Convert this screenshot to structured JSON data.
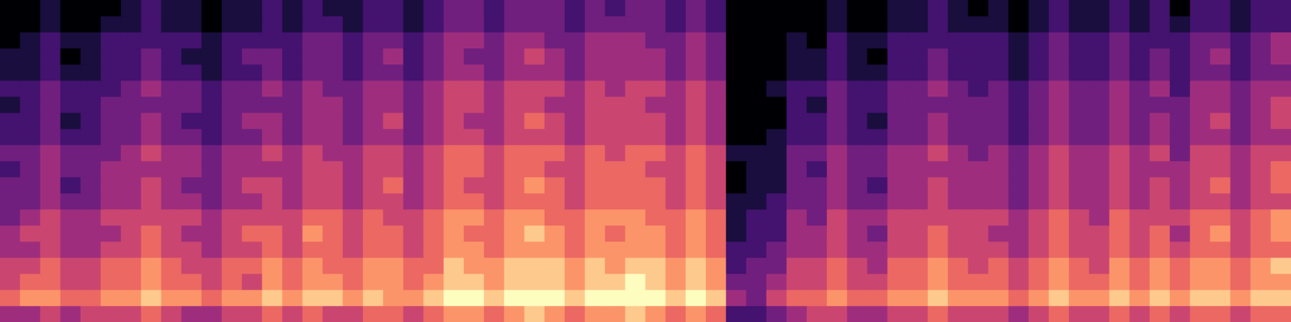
{
  "chart_data": {
    "type": "heatmap",
    "color": "magma",
    "tick_labels": false,
    "zlim": [
      0,
      9
    ],
    "cells": [
      [
        4,
        4,
        5,
        4,
        5,
        5,
        5,
        6,
        5,
        4,
        4,
        5,
        5,
        6,
        5,
        6,
        5,
        5,
        6,
        6,
        5,
        6,
        7,
        7,
        6,
        7,
        8,
        7,
        6,
        7,
        7,
        8,
        7,
        6,
        7,
        6,
        2,
        2,
        3,
        4,
        5,
        5,
        4,
        4,
        5,
        5,
        6,
        5,
        5,
        5,
        4,
        5,
        6,
        5,
        5,
        6,
        5,
        6,
        5,
        6,
        6,
        5,
        6,
        6
      ],
      [
        6,
        7,
        7,
        6,
        6,
        7,
        7,
        8,
        7,
        7,
        6,
        7,
        7,
        8,
        7,
        8,
        8,
        7,
        8,
        7,
        7,
        8,
        9,
        9,
        8,
        9,
        9,
        9,
        8,
        9,
        9,
        9,
        9,
        8,
        9,
        8,
        4,
        3,
        5,
        6,
        6,
        7,
        6,
        6,
        7,
        7,
        8,
        7,
        7,
        7,
        6,
        7,
        8,
        7,
        7,
        8,
        7,
        8,
        7,
        8,
        8,
        7,
        8,
        8
      ],
      [
        5,
        6,
        6,
        5,
        5,
        6,
        6,
        7,
        6,
        6,
        5,
        6,
        5,
        7,
        6,
        7,
        7,
        6,
        7,
        7,
        6,
        7,
        8,
        8,
        7,
        8,
        8,
        8,
        7,
        8,
        8,
        9,
        8,
        7,
        8,
        7,
        3,
        3,
        4,
        5,
        5,
        6,
        5,
        5,
        6,
        6,
        7,
        6,
        6,
        6,
        5,
        6,
        7,
        6,
        6,
        7,
        6,
        7,
        6,
        7,
        7,
        6,
        7,
        7
      ],
      [
        5,
        5,
        6,
        5,
        5,
        6,
        6,
        7,
        6,
        5,
        5,
        6,
        6,
        7,
        6,
        7,
        6,
        6,
        7,
        7,
        6,
        6,
        8,
        7,
        7,
        8,
        8,
        8,
        7,
        8,
        7,
        8,
        8,
        7,
        8,
        7,
        2,
        3,
        3,
        5,
        5,
        6,
        5,
        4,
        6,
        6,
        7,
        6,
        5,
        6,
        5,
        6,
        7,
        6,
        5,
        7,
        6,
        7,
        6,
        7,
        7,
        6,
        7,
        8
      ],
      [
        4,
        4,
        5,
        4,
        4,
        5,
        5,
        6,
        5,
        5,
        4,
        5,
        5,
        6,
        5,
        6,
        6,
        5,
        6,
        6,
        5,
        6,
        7,
        7,
        6,
        7,
        7,
        7,
        6,
        7,
        7,
        7,
        7,
        6,
        7,
        6,
        2,
        2,
        3,
        4,
        4,
        5,
        4,
        4,
        5,
        5,
        6,
        5,
        5,
        5,
        4,
        5,
        6,
        5,
        5,
        6,
        5,
        6,
        5,
        6,
        6,
        5,
        6,
        6
      ],
      [
        4,
        5,
        5,
        4,
        4,
        4,
        5,
        6,
        5,
        4,
        4,
        5,
        6,
        6,
        5,
        7,
        6,
        5,
        6,
        6,
        5,
        6,
        7,
        6,
        6,
        7,
        8,
        7,
        6,
        7,
        6,
        7,
        7,
        6,
        7,
        6,
        1,
        2,
        2,
        4,
        4,
        5,
        4,
        3,
        5,
        5,
        6,
        5,
        5,
        4,
        4,
        5,
        6,
        5,
        5,
        6,
        5,
        6,
        4,
        6,
        7,
        5,
        6,
        7
      ],
      [
        3,
        4,
        5,
        4,
        4,
        5,
        5,
        5,
        5,
        5,
        4,
        5,
        5,
        5,
        5,
        6,
        6,
        5,
        6,
        5,
        5,
        6,
        7,
        7,
        6,
        7,
        7,
        6,
        6,
        7,
        7,
        7,
        6,
        6,
        7,
        6,
        1,
        2,
        2,
        4,
        3,
        5,
        4,
        4,
        5,
        5,
        5,
        5,
        5,
        5,
        4,
        5,
        6,
        5,
        4,
        6,
        5,
        5,
        5,
        6,
        6,
        5,
        6,
        7
      ],
      [
        3,
        3,
        4,
        3,
        3,
        4,
        4,
        5,
        4,
        4,
        3,
        4,
        4,
        5,
        4,
        5,
        5,
        4,
        5,
        5,
        4,
        5,
        6,
        6,
        5,
        6,
        6,
        6,
        5,
        6,
        6,
        6,
        6,
        5,
        6,
        5,
        1,
        1,
        2,
        3,
        3,
        4,
        3,
        3,
        4,
        4,
        5,
        4,
        4,
        4,
        3,
        4,
        5,
        4,
        4,
        5,
        4,
        5,
        4,
        5,
        5,
        4,
        5,
        5
      ],
      [
        3,
        3,
        4,
        2,
        3,
        4,
        4,
        5,
        4,
        3,
        3,
        4,
        5,
        5,
        4,
        5,
        5,
        4,
        5,
        6,
        4,
        5,
        6,
        5,
        5,
        6,
        7,
        6,
        5,
        6,
        6,
        6,
        6,
        5,
        6,
        5,
        0,
        1,
        1,
        3,
        3,
        4,
        3,
        2,
        4,
        4,
        5,
        4,
        4,
        4,
        3,
        4,
        5,
        4,
        4,
        5,
        4,
        5,
        4,
        5,
        6,
        4,
        5,
        6
      ],
      [
        2,
        3,
        4,
        3,
        3,
        4,
        4,
        4,
        4,
        4,
        3,
        4,
        4,
        4,
        4,
        5,
        5,
        4,
        5,
        5,
        4,
        5,
        6,
        6,
        5,
        6,
        6,
        5,
        5,
        6,
        6,
        6,
        5,
        5,
        6,
        5,
        0,
        1,
        1,
        3,
        2,
        4,
        3,
        3,
        4,
        4,
        4,
        4,
        4,
        4,
        3,
        4,
        5,
        4,
        4,
        5,
        4,
        4,
        4,
        5,
        5,
        4,
        5,
        6
      ],
      [
        3,
        3,
        4,
        3,
        3,
        3,
        4,
        5,
        4,
        4,
        3,
        4,
        4,
        5,
        4,
        5,
        4,
        4,
        5,
        5,
        4,
        5,
        6,
        6,
        5,
        6,
        6,
        6,
        5,
        6,
        5,
        6,
        6,
        5,
        6,
        5,
        1,
        1,
        1,
        3,
        3,
        4,
        3,
        3,
        4,
        4,
        5,
        4,
        3,
        4,
        3,
        4,
        5,
        4,
        4,
        5,
        4,
        5,
        3,
        5,
        5,
        4,
        5,
        5
      ],
      [
        2,
        2,
        3,
        2,
        2,
        3,
        3,
        4,
        3,
        3,
        2,
        3,
        3,
        4,
        3,
        4,
        4,
        3,
        4,
        4,
        3,
        4,
        5,
        5,
        4,
        5,
        5,
        5,
        4,
        5,
        5,
        5,
        5,
        4,
        5,
        4,
        0,
        0,
        1,
        2,
        2,
        3,
        2,
        2,
        3,
        3,
        4,
        3,
        3,
        3,
        2,
        3,
        4,
        3,
        3,
        4,
        3,
        4,
        3,
        4,
        4,
        3,
        4,
        4
      ],
      [
        2,
        2,
        3,
        1,
        2,
        3,
        3,
        4,
        3,
        2,
        2,
        3,
        4,
        4,
        3,
        4,
        4,
        3,
        4,
        5,
        3,
        4,
        5,
        4,
        4,
        5,
        6,
        5,
        4,
        5,
        5,
        5,
        5,
        4,
        5,
        4,
        0,
        0,
        0,
        2,
        2,
        3,
        2,
        1,
        3,
        3,
        4,
        3,
        3,
        3,
        2,
        3,
        4,
        3,
        3,
        4,
        3,
        4,
        3,
        4,
        5,
        3,
        4,
        5
      ],
      [
        1,
        2,
        3,
        2,
        2,
        3,
        3,
        3,
        3,
        3,
        2,
        3,
        3,
        3,
        3,
        4,
        4,
        3,
        4,
        4,
        3,
        4,
        5,
        5,
        4,
        5,
        5,
        4,
        4,
        5,
        5,
        5,
        4,
        4,
        5,
        4,
        0,
        0,
        0,
        2,
        1,
        3,
        2,
        2,
        3,
        3,
        3,
        3,
        3,
        3,
        2,
        3,
        4,
        3,
        3,
        4,
        3,
        3,
        3,
        4,
        4,
        3,
        4,
        5
      ],
      [
        2,
        2,
        3,
        2,
        2,
        2,
        3,
        4,
        3,
        3,
        2,
        3,
        3,
        4,
        3,
        4,
        3,
        3,
        4,
        4,
        3,
        4,
        5,
        5,
        4,
        5,
        5,
        5,
        4,
        5,
        4,
        5,
        5,
        4,
        5,
        4,
        0,
        0,
        1,
        2,
        2,
        3,
        2,
        2,
        3,
        3,
        4,
        3,
        2,
        3,
        2,
        3,
        4,
        3,
        3,
        4,
        3,
        4,
        2,
        4,
        4,
        3,
        4,
        4
      ],
      [
        1,
        1,
        2,
        1,
        1,
        2,
        2,
        3,
        2,
        2,
        1,
        2,
        2,
        3,
        2,
        3,
        3,
        2,
        3,
        3,
        2,
        3,
        4,
        4,
        3,
        4,
        4,
        4,
        3,
        4,
        4,
        4,
        4,
        3,
        4,
        3,
        0,
        0,
        0,
        1,
        1,
        2,
        1,
        1,
        2,
        2,
        3,
        2,
        2,
        2,
        1,
        2,
        3,
        2,
        2,
        3,
        2,
        3,
        2,
        3,
        3,
        2,
        3,
        3
      ],
      [
        1,
        1,
        2,
        0,
        1,
        2,
        2,
        3,
        2,
        1,
        1,
        2,
        3,
        3,
        2,
        3,
        3,
        2,
        3,
        4,
        2,
        3,
        4,
        3,
        3,
        4,
        5,
        4,
        3,
        4,
        4,
        4,
        4,
        3,
        4,
        3,
        0,
        0,
        0,
        1,
        1,
        2,
        1,
        0,
        2,
        2,
        3,
        2,
        2,
        2,
        1,
        2,
        3,
        2,
        2,
        3,
        2,
        3,
        2,
        3,
        4,
        2,
        3,
        4
      ],
      [
        0,
        1,
        2,
        1,
        1,
        2,
        2,
        2,
        2,
        2,
        1,
        2,
        2,
        2,
        2,
        3,
        3,
        2,
        3,
        3,
        2,
        3,
        4,
        4,
        3,
        4,
        4,
        3,
        3,
        4,
        4,
        4,
        3,
        3,
        4,
        3,
        0,
        0,
        0,
        1,
        0,
        2,
        1,
        1,
        2,
        2,
        2,
        2,
        2,
        2,
        1,
        2,
        3,
        2,
        2,
        3,
        2,
        2,
        2,
        3,
        3,
        2,
        3,
        4
      ],
      [
        0,
        0,
        1,
        0,
        0,
        1,
        1,
        2,
        1,
        1,
        0,
        1,
        1,
        2,
        1,
        2,
        2,
        1,
        2,
        2,
        1,
        2,
        3,
        3,
        2,
        3,
        3,
        3,
        2,
        3,
        3,
        3,
        3,
        2,
        3,
        2,
        0,
        0,
        0,
        0,
        0,
        1,
        0,
        0,
        1,
        1,
        2,
        1,
        1,
        1,
        0,
        1,
        2,
        1,
        1,
        2,
        1,
        2,
        1,
        2,
        2,
        1,
        2,
        2
      ],
      [
        0,
        0,
        1,
        0,
        0,
        0,
        1,
        2,
        1,
        1,
        0,
        1,
        1,
        2,
        1,
        2,
        1,
        1,
        2,
        2,
        1,
        2,
        3,
        3,
        2,
        3,
        3,
        3,
        2,
        3,
        2,
        3,
        3,
        2,
        3,
        2,
        0,
        0,
        0,
        0,
        0,
        1,
        0,
        0,
        1,
        1,
        2,
        1,
        0,
        1,
        0,
        1,
        2,
        1,
        1,
        2,
        1,
        2,
        0,
        2,
        2,
        1,
        2,
        2
      ]
    ]
  }
}
